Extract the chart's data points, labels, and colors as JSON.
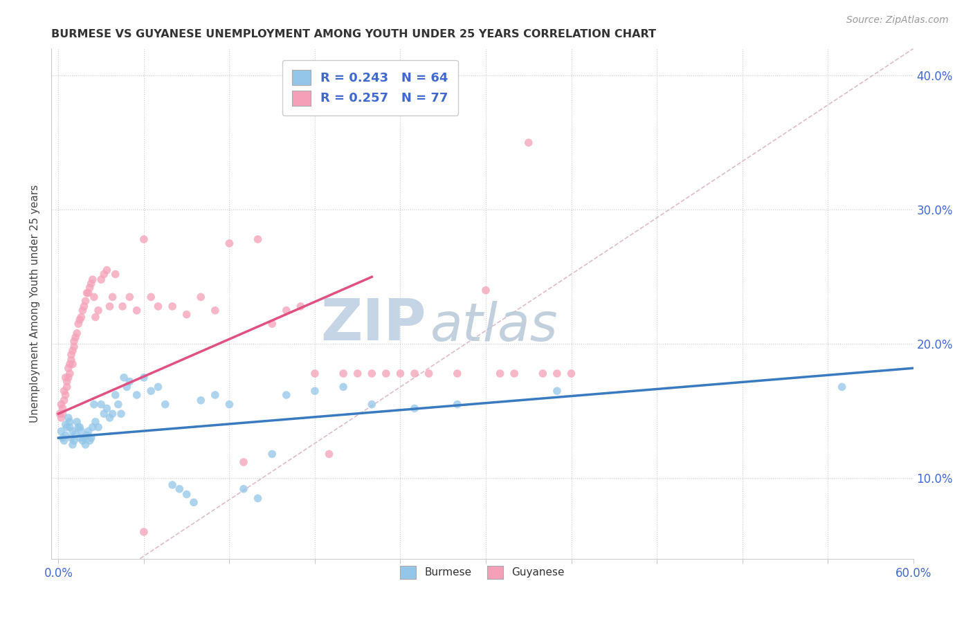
{
  "title": "BURMESE VS GUYANESE UNEMPLOYMENT AMONG YOUTH UNDER 25 YEARS CORRELATION CHART",
  "source": "Source: ZipAtlas.com",
  "ylabel": "Unemployment Among Youth under 25 years",
  "xlim": [
    -0.005,
    0.6
  ],
  "ylim": [
    0.04,
    0.42
  ],
  "xticks": [
    0.0,
    0.06,
    0.12,
    0.18,
    0.24,
    0.3,
    0.36,
    0.42,
    0.48,
    0.54,
    0.6
  ],
  "yticks": [
    0.1,
    0.2,
    0.3,
    0.4
  ],
  "xtick_labels_show": [
    "0.0%",
    "60.0%"
  ],
  "ytick_labels": [
    "10.0%",
    "20.0%",
    "30.0%",
    "40.0%"
  ],
  "burmese_color": "#93c6e8",
  "guyanese_color": "#f4a0b8",
  "burmese_line_color": "#3a7abf",
  "guyanese_line_color": "#e05080",
  "ref_line_color": "#ddbbcc",
  "text_color": "#4169cd",
  "watermark_zip": "ZIP",
  "watermark_atlas": "atlas",
  "watermark_color_zip": "#c5d5e5",
  "watermark_color_atlas": "#b8c8d8",
  "burmese_R": 0.243,
  "burmese_N": 64,
  "guyanese_R": 0.257,
  "guyanese_N": 77,
  "burmese_x": [
    0.002,
    0.003,
    0.004,
    0.005,
    0.005,
    0.006,
    0.007,
    0.008,
    0.008,
    0.009,
    0.01,
    0.01,
    0.011,
    0.012,
    0.013,
    0.014,
    0.015,
    0.015,
    0.016,
    0.017,
    0.018,
    0.019,
    0.02,
    0.021,
    0.022,
    0.023,
    0.024,
    0.025,
    0.026,
    0.028,
    0.03,
    0.032,
    0.034,
    0.036,
    0.038,
    0.04,
    0.042,
    0.044,
    0.046,
    0.048,
    0.05,
    0.055,
    0.06,
    0.065,
    0.07,
    0.075,
    0.08,
    0.085,
    0.09,
    0.095,
    0.1,
    0.11,
    0.12,
    0.13,
    0.14,
    0.15,
    0.16,
    0.18,
    0.2,
    0.22,
    0.25,
    0.28,
    0.35,
    0.55
  ],
  "burmese_y": [
    0.135,
    0.13,
    0.128,
    0.132,
    0.14,
    0.138,
    0.145,
    0.142,
    0.138,
    0.13,
    0.125,
    0.135,
    0.128,
    0.133,
    0.142,
    0.138,
    0.13,
    0.138,
    0.135,
    0.128,
    0.13,
    0.125,
    0.132,
    0.135,
    0.128,
    0.13,
    0.138,
    0.155,
    0.142,
    0.138,
    0.155,
    0.148,
    0.152,
    0.145,
    0.148,
    0.162,
    0.155,
    0.148,
    0.175,
    0.168,
    0.172,
    0.162,
    0.175,
    0.165,
    0.168,
    0.155,
    0.095,
    0.092,
    0.088,
    0.082,
    0.158,
    0.162,
    0.155,
    0.092,
    0.085,
    0.118,
    0.162,
    0.165,
    0.168,
    0.155,
    0.152,
    0.155,
    0.165,
    0.168
  ],
  "guyanese_x": [
    0.001,
    0.002,
    0.002,
    0.003,
    0.003,
    0.004,
    0.004,
    0.005,
    0.005,
    0.006,
    0.006,
    0.007,
    0.007,
    0.008,
    0.008,
    0.009,
    0.009,
    0.01,
    0.01,
    0.011,
    0.011,
    0.012,
    0.013,
    0.014,
    0.015,
    0.016,
    0.017,
    0.018,
    0.019,
    0.02,
    0.021,
    0.022,
    0.023,
    0.024,
    0.025,
    0.026,
    0.028,
    0.03,
    0.032,
    0.034,
    0.036,
    0.038,
    0.04,
    0.045,
    0.05,
    0.055,
    0.06,
    0.065,
    0.07,
    0.08,
    0.09,
    0.1,
    0.11,
    0.12,
    0.13,
    0.14,
    0.15,
    0.16,
    0.17,
    0.18,
    0.19,
    0.2,
    0.21,
    0.22,
    0.23,
    0.24,
    0.25,
    0.26,
    0.28,
    0.3,
    0.31,
    0.32,
    0.33,
    0.34,
    0.35,
    0.36,
    0.06
  ],
  "guyanese_y": [
    0.148,
    0.155,
    0.145,
    0.152,
    0.148,
    0.158,
    0.165,
    0.162,
    0.175,
    0.168,
    0.172,
    0.175,
    0.182,
    0.178,
    0.185,
    0.188,
    0.192,
    0.195,
    0.185,
    0.198,
    0.202,
    0.205,
    0.208,
    0.215,
    0.218,
    0.22,
    0.225,
    0.228,
    0.232,
    0.238,
    0.238,
    0.242,
    0.245,
    0.248,
    0.235,
    0.22,
    0.225,
    0.248,
    0.252,
    0.255,
    0.228,
    0.235,
    0.252,
    0.228,
    0.235,
    0.225,
    0.278,
    0.235,
    0.228,
    0.228,
    0.222,
    0.235,
    0.225,
    0.275,
    0.112,
    0.278,
    0.215,
    0.225,
    0.228,
    0.178,
    0.118,
    0.178,
    0.178,
    0.178,
    0.178,
    0.178,
    0.178,
    0.178,
    0.178,
    0.24,
    0.178,
    0.178,
    0.35,
    0.178,
    0.178,
    0.178,
    0.06
  ],
  "burmese_trend_x0": 0.0,
  "burmese_trend_y0": 0.13,
  "burmese_trend_x1": 0.6,
  "burmese_trend_y1": 0.182,
  "guyanese_trend_x0": 0.0,
  "guyanese_trend_y0": 0.148,
  "guyanese_trend_x1": 0.22,
  "guyanese_trend_y1": 0.25
}
